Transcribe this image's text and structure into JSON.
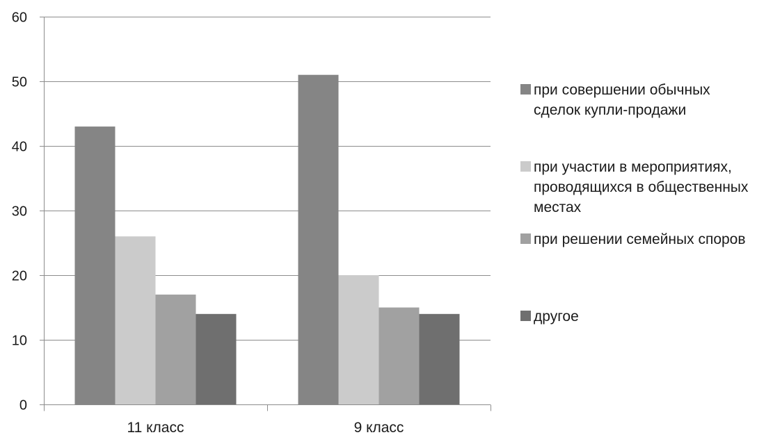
{
  "chart_data": {
    "type": "bar",
    "categories": [
      "11 класс",
      "9 класс"
    ],
    "series": [
      {
        "name": "при совершении обычных сделок купли-продажи",
        "values": [
          43,
          51
        ],
        "color": "#858585"
      },
      {
        "name": "при участии в мероприятиях, проводящихся в общественных местах",
        "values": [
          26,
          20
        ],
        "color": "#cbcbcb"
      },
      {
        "name": "при решении семейных споров",
        "values": [
          17,
          15
        ],
        "color": "#a1a1a1"
      },
      {
        "name": "другое",
        "values": [
          14,
          14
        ],
        "color": "#6f6f6f"
      }
    ],
    "ylim": [
      0,
      60
    ],
    "yticks": [
      "0",
      "10",
      "20",
      "30",
      "40",
      "50",
      "60"
    ],
    "grid": true,
    "legend_position": "right"
  }
}
